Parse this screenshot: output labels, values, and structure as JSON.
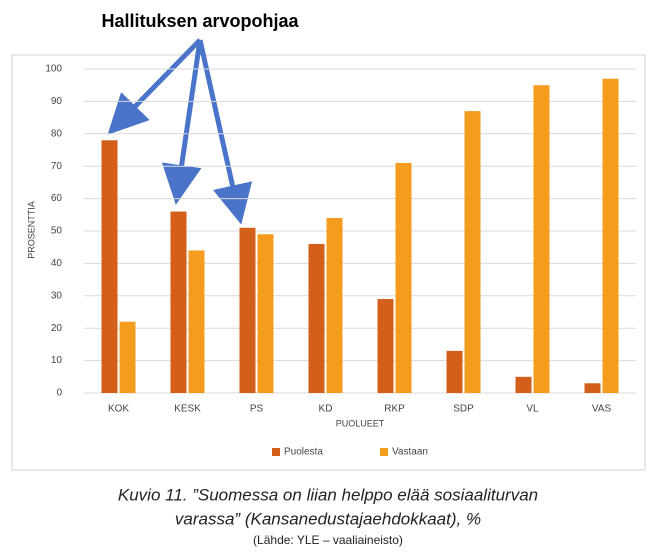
{
  "chart_data": {
    "type": "bar",
    "annotation": "Hallituksen arvopohjaa",
    "ylabel": "PROSENTTIA",
    "xlabel": "PUOLUEET",
    "categories": [
      "KOK",
      "KESK",
      "PS",
      "KD",
      "RKP",
      "SDP",
      "VL",
      "VAS"
    ],
    "series": [
      {
        "name": "Puolesta",
        "color": "#d35f1a",
        "values": [
          78,
          56,
          51,
          46,
          29,
          13,
          5,
          3
        ]
      },
      {
        "name": "Vastaan",
        "color": "#f39c1e",
        "values": [
          22,
          44,
          49,
          54,
          71,
          87,
          95,
          97
        ]
      }
    ],
    "ylim": [
      0,
      100
    ],
    "yticks": [
      0,
      10,
      20,
      30,
      40,
      50,
      60,
      70,
      80,
      90,
      100
    ],
    "grid": true,
    "legend": "bottom",
    "caption": [
      "Kuvio 11. ”Suomessa on liian helppo elää sosiaaliturvan",
      "varassa” (Kansanedustajaehdokkaat), %"
    ],
    "source": "(Lähde: YLE – vaaliaineisto)"
  }
}
